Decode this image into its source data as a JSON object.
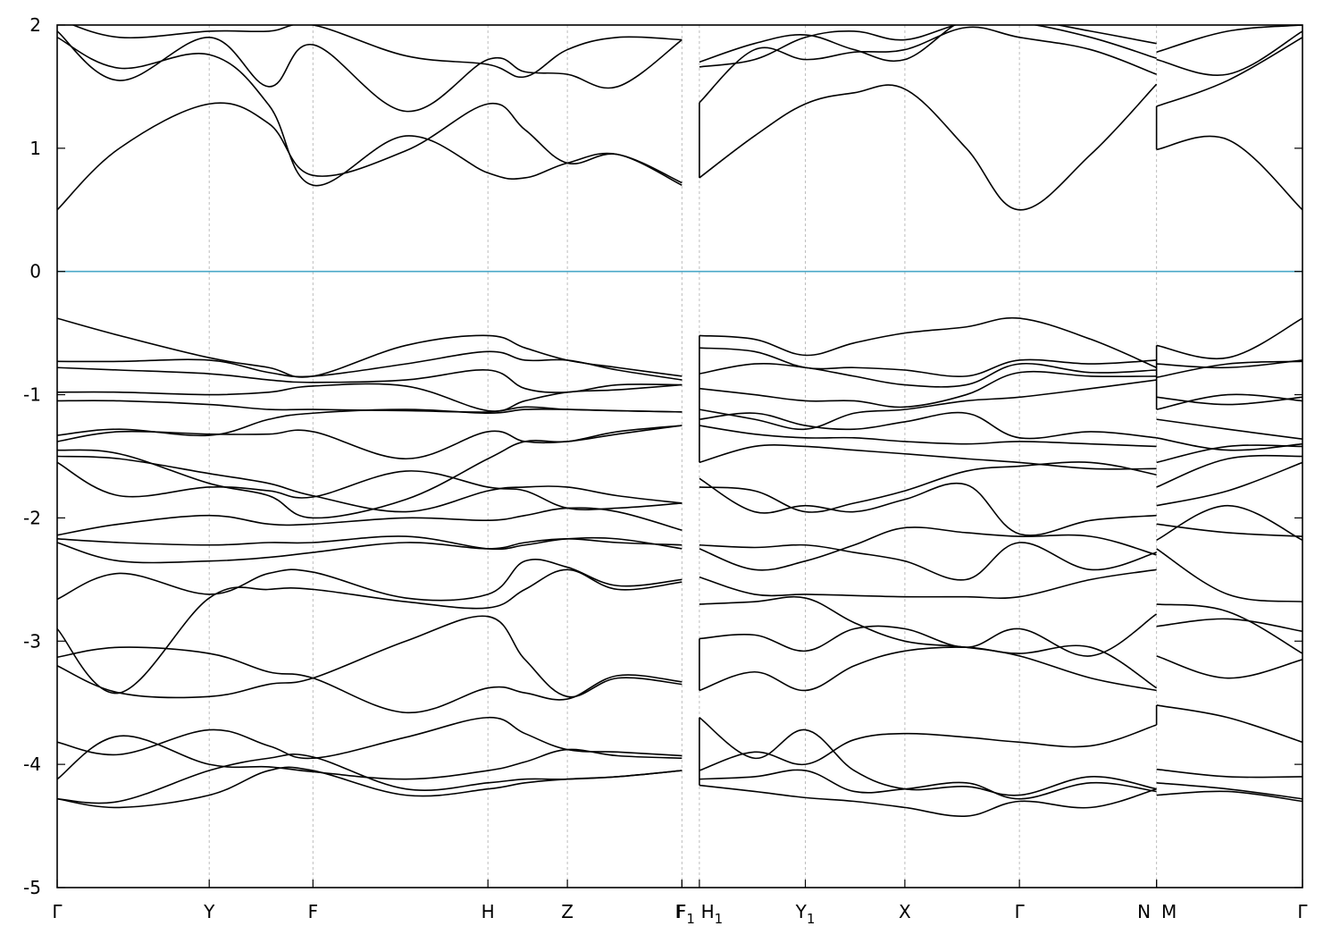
{
  "chart_data": {
    "type": "line",
    "title": "",
    "xlabel": "",
    "ylabel": "",
    "ylim": [
      -5,
      2
    ],
    "yticks": [
      -5,
      -4,
      -3,
      -2,
      -1,
      0,
      1,
      2
    ],
    "grid": "vertical dotted lines at high-symmetry points",
    "fermi_level": 0,
    "colors": {
      "bands": "#000000",
      "fermi": "#4aa8c8",
      "grid": "#bdbdbd"
    },
    "xlim": [
      0,
      1.0
    ],
    "high_symmetry_points": [
      {
        "label": "Γ",
        "sub": "",
        "x": 0.0
      },
      {
        "label": "Y",
        "sub": "",
        "x": 0.1221
      },
      {
        "label": "F",
        "sub": "",
        "x": 0.2054
      },
      {
        "label": "H",
        "sub": "",
        "x": 0.3459
      },
      {
        "label": "Z",
        "sub": "",
        "x": 0.4097
      },
      {
        "label": "F",
        "sub": "",
        "x": 0.5017
      },
      {
        "label": "F",
        "sub": "1",
        "x": 0.5017
      },
      {
        "label": "H",
        "sub": "1",
        "x": 0.5157
      },
      {
        "label": "Y",
        "sub": "1",
        "x": 0.6008
      },
      {
        "label": "X",
        "sub": "",
        "x": 0.6807
      },
      {
        "label": "Γ",
        "sub": "",
        "x": 0.7727
      },
      {
        "label": "N",
        "sub": "",
        "x": 0.8828
      },
      {
        "label": "M",
        "sub": "",
        "x": 0.8828
      },
      {
        "label": "Γ",
        "sub": "",
        "x": 1.0
      }
    ],
    "segments": [
      {
        "x": [
          0.0,
          0.05,
          0.1221,
          0.17,
          0.2054,
          0.28,
          0.3459,
          0.3757,
          0.4097,
          0.45,
          0.5017
        ],
        "bands": [
          [
            -4.28,
            -4.35,
            -4.25,
            -4.05,
            -4.05,
            -4.25,
            -4.2,
            -4.15,
            -4.12,
            -4.1,
            -4.05
          ],
          [
            -4.28,
            -4.3,
            -4.05,
            -3.95,
            -3.94,
            -4.2,
            -4.15,
            -4.12,
            -4.12,
            -4.1,
            -4.05
          ],
          [
            -4.12,
            -3.77,
            -4.0,
            -4.02,
            -4.06,
            -4.12,
            -4.05,
            -3.98,
            -3.88,
            -3.93,
            -3.95
          ],
          [
            -3.82,
            -3.92,
            -3.72,
            -3.85,
            -3.95,
            -3.78,
            -3.62,
            -3.75,
            -3.88,
            -3.9,
            -3.93
          ],
          [
            -3.2,
            -3.42,
            -3.45,
            -3.35,
            -3.3,
            -3.0,
            -2.8,
            -3.15,
            -3.45,
            -3.3,
            -3.35
          ],
          [
            -3.13,
            -3.05,
            -3.1,
            -3.25,
            -3.3,
            -3.58,
            -3.38,
            -3.42,
            -3.47,
            -3.28,
            -3.33
          ],
          [
            -2.9,
            -3.42,
            -2.65,
            -2.58,
            -2.58,
            -2.68,
            -2.73,
            -2.58,
            -2.42,
            -2.58,
            -2.52
          ],
          [
            -2.66,
            -2.45,
            -2.62,
            -2.45,
            -2.44,
            -2.65,
            -2.62,
            -2.35,
            -2.4,
            -2.55,
            -2.5
          ],
          [
            -2.2,
            -2.35,
            -2.35,
            -2.32,
            -2.28,
            -2.2,
            -2.25,
            -2.2,
            -2.17,
            -2.2,
            -2.22
          ],
          [
            -2.17,
            -2.2,
            -2.22,
            -2.2,
            -2.2,
            -2.15,
            -2.25,
            -2.22,
            -2.17,
            -2.17,
            -2.25
          ],
          [
            -2.14,
            -2.05,
            -1.98,
            -2.05,
            -2.05,
            -2.0,
            -2.02,
            -1.98,
            -1.92,
            -1.95,
            -2.1
          ],
          [
            -1.55,
            -1.82,
            -1.75,
            -1.78,
            -1.83,
            -1.62,
            -1.75,
            -1.78,
            -1.92,
            -1.92,
            -1.88
          ],
          [
            -1.5,
            -1.52,
            -1.64,
            -1.72,
            -1.82,
            -1.95,
            -1.78,
            -1.75,
            -1.75,
            -1.82,
            -1.88
          ],
          [
            -1.45,
            -1.48,
            -1.72,
            -1.82,
            -2.0,
            -1.85,
            -1.52,
            -1.38,
            -1.38,
            -1.3,
            -1.25
          ],
          [
            -1.38,
            -1.3,
            -1.32,
            -1.32,
            -1.3,
            -1.52,
            -1.3,
            -1.38,
            -1.38,
            -1.32,
            -1.25
          ],
          [
            -1.33,
            -1.28,
            -1.33,
            -1.2,
            -1.15,
            -1.12,
            -1.15,
            -1.12,
            -1.12,
            -1.13,
            -1.14
          ],
          [
            -1.05,
            -1.05,
            -1.08,
            -1.12,
            -1.12,
            -1.13,
            -1.14,
            -1.1,
            -1.12,
            -1.13,
            -1.14
          ],
          [
            -0.98,
            -0.98,
            -1.0,
            -0.98,
            -0.93,
            -0.93,
            -1.13,
            -1.05,
            -0.98,
            -0.96,
            -0.92
          ],
          [
            -0.78,
            -0.8,
            -0.83,
            -0.88,
            -0.9,
            -0.88,
            -0.8,
            -0.95,
            -0.98,
            -0.92,
            -0.92
          ],
          [
            -0.73,
            -0.73,
            -0.72,
            -0.82,
            -0.85,
            -0.75,
            -0.65,
            -0.72,
            -0.72,
            -0.8,
            -0.88
          ],
          [
            -0.38,
            -0.52,
            -0.7,
            -0.78,
            -0.85,
            -0.6,
            -0.52,
            -0.62,
            -0.72,
            -0.78,
            -0.85
          ],
          [
            0.5,
            1.0,
            1.36,
            1.2,
            0.78,
            0.98,
            1.36,
            1.15,
            0.88,
            0.95,
            0.72
          ],
          [
            1.9,
            1.65,
            1.76,
            1.35,
            0.7,
            1.1,
            0.8,
            0.76,
            0.88,
            0.95,
            0.7
          ],
          [
            1.95,
            1.55,
            1.9,
            1.5,
            1.84,
            1.3,
            1.72,
            1.62,
            1.6,
            1.5,
            1.88
          ],
          [
            2.05,
            1.9,
            1.95,
            1.95,
            2.0,
            1.75,
            1.68,
            1.58,
            1.8,
            1.9,
            1.88
          ]
        ]
      },
      {
        "x": [
          0.5157,
          0.56,
          0.6008,
          0.64,
          0.6807,
          0.73,
          0.7727,
          0.83,
          0.8828
        ],
        "bands": [
          [
            -4.17,
            -4.22,
            -4.27,
            -4.3,
            -4.35,
            -4.42,
            -4.3,
            -4.35,
            -4.2
          ],
          [
            -4.12,
            -4.1,
            -4.05,
            -4.22,
            -4.2,
            -4.15,
            -4.28,
            -4.15,
            -4.22
          ],
          [
            -4.05,
            -3.9,
            -4.0,
            -3.8,
            -3.75,
            -3.78,
            -3.82,
            -3.85,
            -3.68
          ],
          [
            -3.62,
            -3.95,
            -3.72,
            -4.05,
            -4.2,
            -4.18,
            -4.25,
            -4.1,
            -4.2
          ],
          [
            -3.4,
            -3.25,
            -3.4,
            -3.2,
            -3.08,
            -3.05,
            -3.1,
            -3.05,
            -3.38
          ],
          [
            -2.98,
            -2.95,
            -3.08,
            -2.9,
            -2.9,
            -3.05,
            -2.9,
            -3.12,
            -2.78
          ],
          [
            -2.7,
            -2.68,
            -2.65,
            -2.85,
            -3.0,
            -3.05,
            -3.12,
            -3.3,
            -3.4
          ],
          [
            -2.48,
            -2.62,
            -2.62,
            -2.63,
            -2.64,
            -2.64,
            -2.64,
            -2.5,
            -2.42
          ],
          [
            -2.25,
            -2.42,
            -2.35,
            -2.22,
            -2.08,
            -2.12,
            -2.15,
            -2.15,
            -2.3
          ],
          [
            -2.22,
            -2.24,
            -2.22,
            -2.28,
            -2.35,
            -2.5,
            -2.2,
            -2.42,
            -2.28
          ],
          [
            -1.68,
            -1.95,
            -1.9,
            -1.95,
            -1.85,
            -1.73,
            -2.13,
            -2.02,
            -1.98
          ],
          [
            -1.75,
            -1.78,
            -1.95,
            -1.88,
            -1.78,
            -1.62,
            -1.58,
            -1.55,
            -1.65
          ],
          [
            -1.55,
            -1.42,
            -1.42,
            -1.45,
            -1.48,
            -1.52,
            -1.55,
            -1.6,
            -1.6
          ],
          [
            -1.25,
            -1.32,
            -1.35,
            -1.35,
            -1.38,
            -1.4,
            -1.38,
            -1.4,
            -1.42
          ],
          [
            -1.2,
            -1.15,
            -1.25,
            -1.28,
            -1.22,
            -1.15,
            -1.35,
            -1.3,
            -1.35
          ],
          [
            -1.12,
            -1.2,
            -1.28,
            -1.15,
            -1.12,
            -1.05,
            -1.02,
            -0.95,
            -0.88
          ],
          [
            -0.95,
            -1.0,
            -1.05,
            -1.05,
            -1.1,
            -1.0,
            -0.82,
            -0.85,
            -0.85
          ],
          [
            -0.83,
            -0.75,
            -0.78,
            -0.85,
            -0.92,
            -0.92,
            -0.75,
            -0.82,
            -0.8
          ],
          [
            -0.62,
            -0.65,
            -0.78,
            -0.78,
            -0.8,
            -0.85,
            -0.72,
            -0.75,
            -0.72
          ],
          [
            -0.52,
            -0.55,
            -0.68,
            -0.58,
            -0.5,
            -0.45,
            -0.38,
            -0.55,
            -0.78
          ],
          [
            0.76,
            1.1,
            1.36,
            1.45,
            1.48,
            1.0,
            0.5,
            0.95,
            1.52
          ],
          [
            1.37,
            1.8,
            1.72,
            1.78,
            1.8,
            1.98,
            1.9,
            1.8,
            1.6
          ],
          [
            1.66,
            1.72,
            1.9,
            1.95,
            1.88,
            2.02,
            2.02,
            1.9,
            1.73
          ],
          [
            1.7,
            1.85,
            1.92,
            1.8,
            1.72,
            2.05,
            2.05,
            1.95,
            1.85
          ]
        ]
      },
      {
        "x": [
          0.8828,
          0.94,
          1.0
        ],
        "bands": [
          [
            -4.25,
            -4.22,
            -4.3
          ],
          [
            -4.15,
            -4.2,
            -4.28
          ],
          [
            -4.04,
            -4.1,
            -4.1
          ],
          [
            -3.52,
            -3.62,
            -3.82
          ],
          [
            -3.12,
            -3.3,
            -3.15
          ],
          [
            -2.88,
            -2.82,
            -2.92
          ],
          [
            -2.7,
            -2.76,
            -3.1
          ],
          [
            -2.25,
            -2.62,
            -2.68
          ],
          [
            -2.05,
            -2.12,
            -2.15
          ],
          [
            -2.18,
            -1.9,
            -2.18
          ],
          [
            -1.9,
            -1.78,
            -1.55
          ],
          [
            -1.75,
            -1.52,
            -1.5
          ],
          [
            -1.55,
            -1.42,
            -1.42
          ],
          [
            -1.35,
            -1.45,
            -1.4
          ],
          [
            -1.2,
            -1.28,
            -1.36
          ],
          [
            -1.12,
            -1.0,
            -1.05
          ],
          [
            -1.02,
            -1.08,
            -1.02
          ],
          [
            -0.86,
            -0.75,
            -0.73
          ],
          [
            -0.75,
            -0.78,
            -0.72
          ],
          [
            -0.6,
            -0.7,
            -0.38
          ],
          [
            0.99,
            1.07,
            0.5
          ],
          [
            1.34,
            1.55,
            1.9
          ],
          [
            1.72,
            1.6,
            1.95
          ],
          [
            1.78,
            1.95,
            2.0
          ]
        ]
      }
    ]
  }
}
